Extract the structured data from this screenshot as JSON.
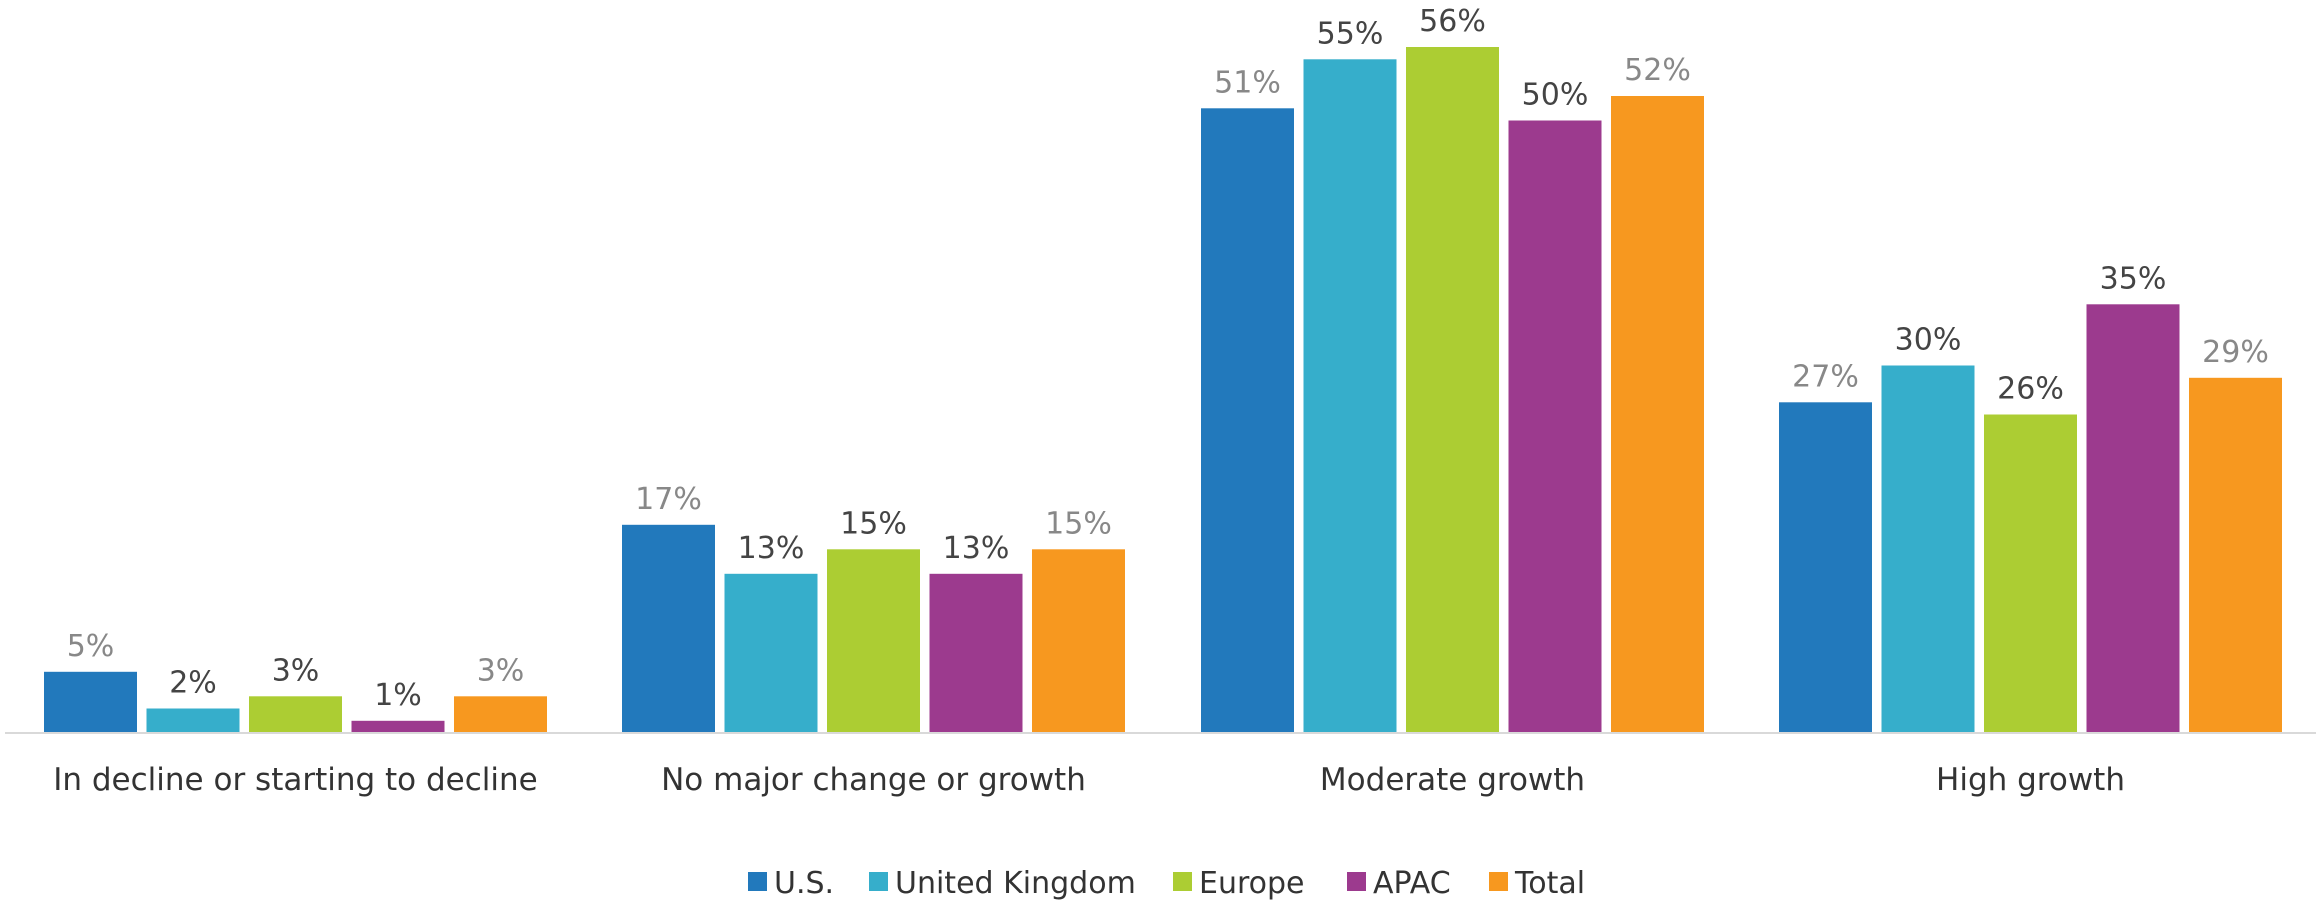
{
  "chart_data": {
    "type": "bar",
    "title": "",
    "xlabel": "",
    "ylabel": "",
    "ylim": [
      0,
      60
    ],
    "grid": false,
    "legend_position": "bottom",
    "categories": [
      "In decline or starting to decline",
      "No major change or growth",
      "Moderate growth",
      "High growth"
    ],
    "series": [
      {
        "name": "U.S.",
        "color": "#2279BC",
        "label_color": "#888888",
        "values": [
          5,
          17,
          51,
          27
        ],
        "labels": [
          "5%",
          "17%",
          "51%",
          "27%"
        ]
      },
      {
        "name": "United Kingdom",
        "color": "#36AECB",
        "label_color": "#444444",
        "values": [
          2,
          13,
          55,
          30
        ],
        "labels": [
          "2%",
          "13%",
          "55%",
          "30%"
        ]
      },
      {
        "name": "Europe",
        "color": "#ACCD33",
        "label_color": "#444444",
        "values": [
          3,
          15,
          56,
          26
        ],
        "labels": [
          "3%",
          "15%",
          "56%",
          "26%"
        ]
      },
      {
        "name": "APAC",
        "color": "#9C3A8E",
        "label_color": "#444444",
        "values": [
          1,
          13,
          50,
          35
        ],
        "labels": [
          "1%",
          "13%",
          "50%",
          "35%"
        ]
      },
      {
        "name": "Total",
        "color": "#F7981F",
        "label_color": "#888888",
        "values": [
          3,
          15,
          52,
          29
        ],
        "labels": [
          "3%",
          "15%",
          "52%",
          "29%"
        ]
      }
    ]
  }
}
